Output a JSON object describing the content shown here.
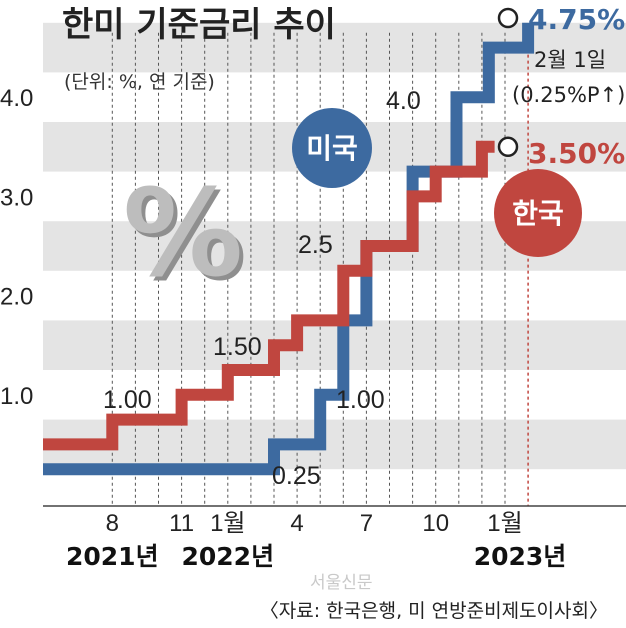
{
  "chart_data": {
    "type": "line",
    "step": true,
    "title": "한미 기준금리 추이",
    "subtitle": "(단위: %, 연 기준)",
    "ylim": [
      0,
      4.75
    ],
    "yticks": [
      1.0,
      2.0,
      3.0,
      4.0
    ],
    "ytick_labels": [
      "1.0",
      "2.0",
      "3.0",
      "4.0"
    ],
    "x_axis": {
      "start": "2021-05",
      "end": "2023-03",
      "ticks": [
        {
          "month": 3,
          "label": "8"
        },
        {
          "month": 6,
          "label": "11"
        },
        {
          "month": 8,
          "label": "1월"
        },
        {
          "month": 11,
          "label": "4"
        },
        {
          "month": 14,
          "label": "7"
        },
        {
          "month": 17,
          "label": "10"
        },
        {
          "month": 20,
          "label": "1월"
        }
      ],
      "years": [
        {
          "month": 3,
          "label": "2021년"
        },
        {
          "month": 8,
          "label": "2022년"
        },
        {
          "month": 20,
          "label": "2023년"
        }
      ]
    },
    "series": [
      {
        "name": "미국",
        "color": "#3d6aa0",
        "steps": [
          {
            "month": 0,
            "value": 0.25
          },
          {
            "month": 10,
            "value": 0.5
          },
          {
            "month": 12,
            "value": 1.0
          },
          {
            "month": 13,
            "value": 1.75
          },
          {
            "month": 14,
            "value": 2.5
          },
          {
            "month": 16,
            "value": 3.25
          },
          {
            "month": 17.9,
            "value": 4.0
          },
          {
            "month": 19.3,
            "value": 4.5
          },
          {
            "month": 21,
            "value": 4.75
          }
        ],
        "end_value": 4.75
      },
      {
        "name": "한국",
        "color": "#c0463f",
        "steps": [
          {
            "month": 0,
            "value": 0.5
          },
          {
            "month": 3,
            "value": 0.75
          },
          {
            "month": 6,
            "value": 1.0
          },
          {
            "month": 8,
            "value": 1.25
          },
          {
            "month": 10,
            "value": 1.5
          },
          {
            "month": 11,
            "value": 1.75
          },
          {
            "month": 13,
            "value": 2.25
          },
          {
            "month": 14,
            "value": 2.5
          },
          {
            "month": 16,
            "value": 3.0
          },
          {
            "month": 17,
            "value": 3.25
          },
          {
            "month": 19,
            "value": 3.5
          }
        ],
        "end_value": 3.5
      }
    ],
    "annotations": {
      "kr_100": "1.00",
      "kr_150": "1.50",
      "us_025": "0.25",
      "us_100": "1.00",
      "us_25": "2.5",
      "us_40": "4.0",
      "us_end": "4.75%",
      "kr_end": "3.50%",
      "date_note": "2월 1일",
      "change_note": "(0.25%P↑)"
    },
    "badges": {
      "us": "미국",
      "kr": "한국"
    },
    "source": "〈자료: 한국은행, 미 연방준비제도이사회〉",
    "watermark": "서울신문",
    "deco_symbol": "%"
  }
}
